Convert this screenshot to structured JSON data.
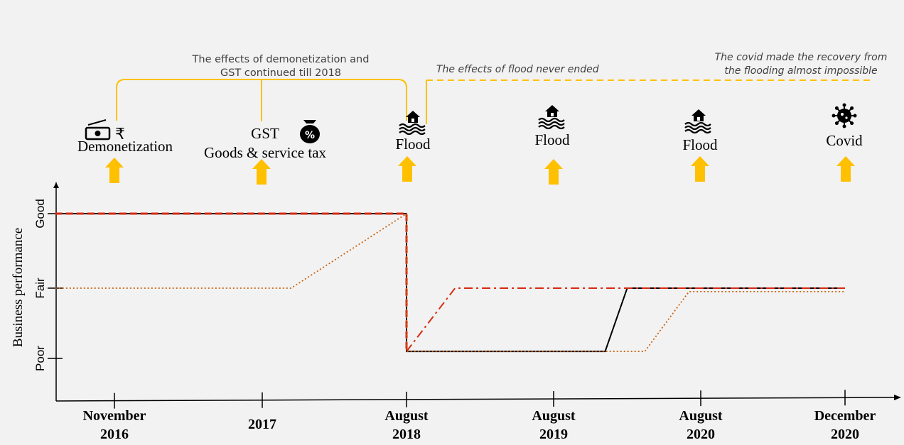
{
  "chart_data": {
    "type": "line",
    "ylabel": "Business performance",
    "y_levels": [
      "Poor",
      "Fair",
      "Good"
    ],
    "x_ticks": [
      {
        "line1": "November",
        "line2": "2016"
      },
      {
        "line1": "2017",
        "line2": ""
      },
      {
        "line1": "August",
        "line2": "2018"
      },
      {
        "line1": "August",
        "line2": "2019"
      },
      {
        "line1": "August",
        "line2": "2020"
      },
      {
        "line1": "December",
        "line2": "2020"
      }
    ],
    "series": [
      {
        "style": "solid",
        "color": "#000000",
        "points": [
          [
            -0.4,
            3
          ],
          [
            2.0,
            3
          ],
          [
            2.0,
            1.1
          ],
          [
            3.35,
            1.1
          ],
          [
            3.5,
            2
          ],
          [
            5.0,
            2
          ]
        ]
      },
      {
        "style": "dash",
        "color": "#d62a10",
        "points": [
          [
            -0.4,
            3
          ],
          [
            2.0,
            3
          ],
          [
            2.0,
            1.1
          ]
        ]
      },
      {
        "style": "dashdot",
        "color": "#d62a10",
        "points": [
          [
            2.0,
            1.1
          ],
          [
            2.33,
            2
          ],
          [
            3.5,
            2
          ],
          [
            5.0,
            2
          ]
        ]
      },
      {
        "style": "dot",
        "color": "#c8640f",
        "points": [
          [
            -0.4,
            2
          ],
          [
            1.2,
            2
          ],
          [
            2.0,
            3
          ],
          [
            2.0,
            1.1
          ],
          [
            3.62,
            1.1
          ],
          [
            3.92,
            1.95
          ],
          [
            5.0,
            1.95
          ]
        ]
      }
    ],
    "events": [
      {
        "tick": 0,
        "icon": "money-rupee-icon",
        "label1": "Demonetization",
        "label2": ""
      },
      {
        "tick": 1,
        "icon": "money-bag-icon",
        "label1": "GST",
        "label2": "Goods & service tax"
      },
      {
        "tick": 2,
        "icon": "flood-icon",
        "label1": "Flood",
        "label2": ""
      },
      {
        "tick": 3,
        "icon": "flood-icon",
        "label1": "Flood",
        "label2": ""
      },
      {
        "tick": 4,
        "icon": "flood-icon",
        "label1": "Flood",
        "label2": ""
      },
      {
        "tick": 5,
        "icon": "virus-icon",
        "label1": "Covid",
        "label2": ""
      }
    ],
    "annotations": [
      {
        "text1": "The effects of demonetization and",
        "text2": "GST continued till 2018"
      },
      {
        "text1": "The effects of flood never ended",
        "text2": ""
      },
      {
        "text1": "The covid made the recovery from",
        "text2": "the flooding almost impossible"
      }
    ]
  },
  "colors": {
    "arrow": "#ffc000",
    "bracket": "#ffc000",
    "axis": "#000000",
    "annotation_text": "#404040"
  }
}
